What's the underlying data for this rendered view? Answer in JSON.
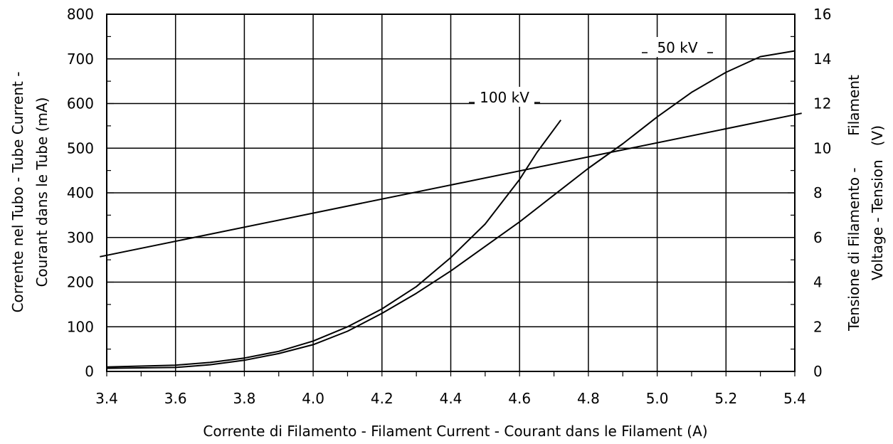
{
  "chart_data": {
    "type": "line",
    "title": "",
    "xlabel": "Corrente di Filamento - Filament Current - Courant dans le Filament  (A)",
    "ylabel_left": [
      "Corrente nel Tubo - Tube Current -",
      "Courant dans le Tube   (mA)"
    ],
    "ylabel_right": [
      "Tensione di Filamento -       Filament",
      "Voltage - Tension   (V)"
    ],
    "xlim": [
      3.4,
      5.4
    ],
    "ylim_left": [
      0,
      800
    ],
    "ylim_right": [
      0,
      16
    ],
    "grid": true,
    "x_ticks": [
      "3.4",
      "3.6",
      "3.8",
      "4.0",
      "4.2",
      "4.4",
      "4.6",
      "4.8",
      "5.0",
      "5.2",
      "5.4"
    ],
    "y_ticks_left": [
      "0",
      "100",
      "200",
      "300",
      "400",
      "500",
      "600",
      "700",
      "800"
    ],
    "y_ticks_right": [
      "0",
      "2",
      "4",
      "6",
      "8",
      "10",
      "12",
      "14",
      "16"
    ],
    "series": [
      {
        "name": "100 kV",
        "axis": "left",
        "x": [
          3.4,
          3.6,
          3.7,
          3.8,
          3.9,
          4.0,
          4.1,
          4.2,
          4.3,
          4.4,
          4.5,
          4.6,
          4.65,
          4.72
        ],
        "y": [
          10,
          14,
          20,
          30,
          45,
          68,
          100,
          140,
          190,
          255,
          330,
          430,
          490,
          563
        ]
      },
      {
        "name": "50 kV",
        "axis": "left",
        "x": [
          3.4,
          3.6,
          3.7,
          3.8,
          3.9,
          4.0,
          4.1,
          4.2,
          4.3,
          4.4,
          4.5,
          4.6,
          4.7,
          4.8,
          4.9,
          5.0,
          5.1,
          5.2,
          5.3,
          5.4
        ],
        "y": [
          7,
          9,
          15,
          25,
          40,
          60,
          90,
          130,
          175,
          225,
          280,
          335,
          395,
          455,
          510,
          570,
          625,
          670,
          705,
          718
        ]
      },
      {
        "name": "Filament voltage",
        "axis": "right",
        "x": [
          3.4,
          5.4
        ],
        "y": [
          5.2,
          11.5
        ]
      }
    ],
    "annotations": [
      "100 kV",
      "50 kV"
    ]
  }
}
